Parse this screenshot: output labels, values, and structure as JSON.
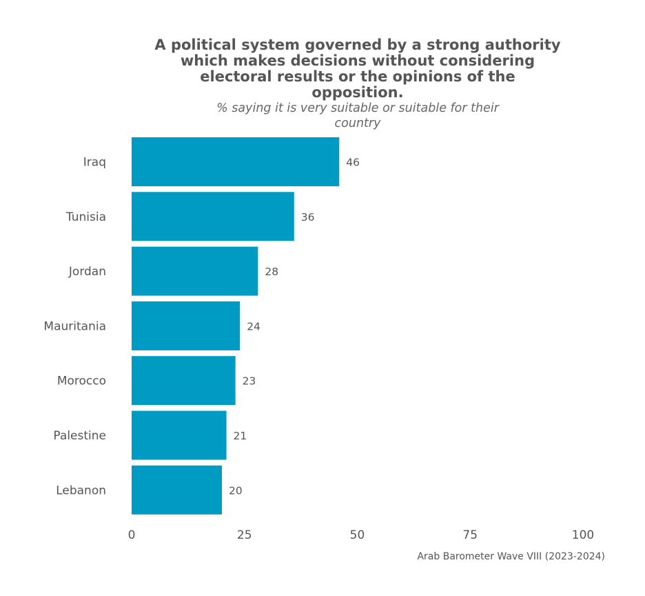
{
  "chart_data": {
    "type": "bar",
    "orientation": "horizontal",
    "title_lines": [
      "A political system governed by a strong authority",
      "which makes decisions without considering",
      "electoral results or the opinions of the",
      "opposition."
    ],
    "subtitle_lines": [
      "% saying it is very suitable or suitable for their",
      "country"
    ],
    "categories": [
      "Iraq",
      "Tunisia",
      "Jordan",
      "Mauritania",
      "Morocco",
      "Palestine",
      "Lebanon"
    ],
    "values": [
      46,
      36,
      28,
      24,
      23,
      21,
      20
    ],
    "xlim": [
      0,
      100
    ],
    "xticks": [
      0,
      25,
      50,
      75,
      100
    ],
    "grid": false,
    "legend": "none",
    "bar_color": "#009bc2",
    "caption": "Arab Barometer Wave VIII (2023-2024)"
  }
}
